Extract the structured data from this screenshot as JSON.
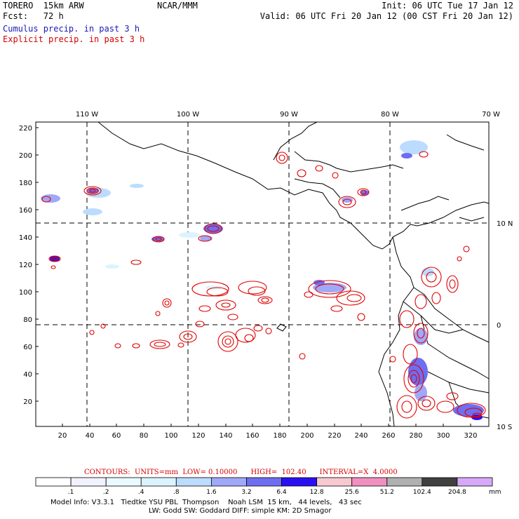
{
  "header": {
    "model": "TORERO  15km ARW",
    "org": "NCAR/MMM",
    "init": "Init: 06 UTC Tue 17 Jan 12",
    "fcst": "Fcst:   72 h",
    "valid": "Valid: 06 UTC Fri 20 Jan 12 (00 CST Fri 20 Jan 12)",
    "cumulus": "Cumulus precip. in past 3 h",
    "explicit": "Explicit precip. in past 3 h"
  },
  "colors": {
    "cumulus": "#1a1ab4",
    "explicit": "#d40000",
    "contour": "#e00000"
  },
  "axes": {
    "lon_top": [
      "110 W",
      "100 W",
      "90 W",
      "80 W",
      "70 W"
    ],
    "lat_right": [
      "10 N",
      "0",
      "10 S"
    ],
    "y_left": [
      "220",
      "200",
      "180",
      "160",
      "140",
      "120",
      "100",
      "80",
      "60",
      "40",
      "20"
    ],
    "x_bottom": [
      "20",
      "40",
      "60",
      "80",
      "100",
      "120",
      "140",
      "160",
      "180",
      "200",
      "220",
      "240",
      "260",
      "280",
      "300",
      "320"
    ]
  },
  "contours_line": "CONTOURS:  UNITS=mm  LOW= 0.10000      HIGH=  102.40      INTERVAL=X  4.0000",
  "colorbar": {
    "labels": [
      ".1",
      ".2",
      ".4",
      ".8",
      "1.6",
      "3.2",
      "6.4",
      "12.8",
      "25.6",
      "51.2",
      "102.4",
      "204.8"
    ],
    "colors": [
      "#ffffff",
      "#f2f2ff",
      "#eafbff",
      "#dcf3ff",
      "#bcdcff",
      "#a0a8f8",
      "#6e6ef0",
      "#2a10f0",
      "#f8c8d0",
      "#f090c0",
      "#b0b0b0",
      "#404040",
      "#d8a8f8"
    ],
    "unit": "mm"
  },
  "model_info": {
    "line1": "Model Info: V3.3.1   Tiedtke YSU PBL  Thompson    Noah LSM  15 km,   44 levels,   43 sec",
    "line2": "LW: Godd SW: Goddard DIFF: simple KM: 2D Smagor"
  }
}
